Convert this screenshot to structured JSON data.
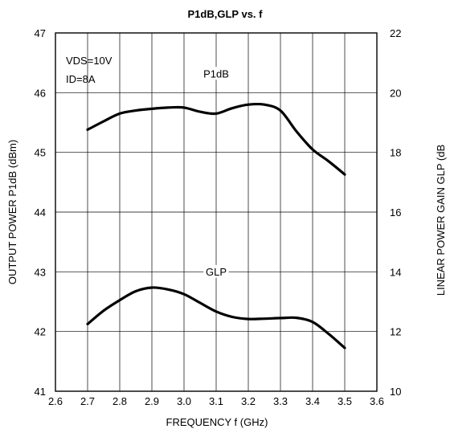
{
  "chart_data": {
    "type": "line",
    "title": "P1dB,GLP vs. f",
    "xlabel": "FREQUENCY f (GHz)",
    "ylabel": "OUTPUT POWER P1dB (dBm)",
    "y2label": "LINEAR POWER GAIN GLP (dB",
    "xlim": [
      2.6,
      3.6
    ],
    "ylim": [
      41,
      47
    ],
    "y2lim": [
      10,
      22
    ],
    "xticks": [
      "2.6",
      "2.7",
      "2.8",
      "2.9",
      "3.0",
      "3.1",
      "3.2",
      "3.3",
      "3.4",
      "3.5",
      "3.6"
    ],
    "yticks": [
      "41",
      "42",
      "43",
      "44",
      "45",
      "46",
      "47"
    ],
    "y2ticks": [
      "10",
      "12",
      "14",
      "16",
      "18",
      "20",
      "22"
    ],
    "grid": true,
    "annotations": [
      "VDS=10V",
      "ID=8A"
    ],
    "series": [
      {
        "name": "P1dB",
        "axis": "left",
        "x": [
          2.7,
          2.75,
          2.8,
          2.85,
          2.9,
          2.95,
          3.0,
          3.05,
          3.1,
          3.15,
          3.2,
          3.25,
          3.3,
          3.35,
          3.4,
          3.45,
          3.5
        ],
        "y": [
          45.38,
          45.52,
          45.65,
          45.7,
          45.73,
          45.75,
          45.75,
          45.68,
          45.65,
          45.74,
          45.8,
          45.8,
          45.7,
          45.35,
          45.05,
          44.85,
          44.63
        ]
      },
      {
        "name": "GLP",
        "axis": "right",
        "x": [
          2.7,
          2.75,
          2.8,
          2.85,
          2.9,
          2.95,
          3.0,
          3.05,
          3.1,
          3.15,
          3.2,
          3.25,
          3.3,
          3.35,
          3.4,
          3.45,
          3.5
        ],
        "y": [
          12.25,
          12.7,
          13.05,
          13.35,
          13.47,
          13.41,
          13.25,
          12.96,
          12.67,
          12.49,
          12.42,
          12.43,
          12.45,
          12.46,
          12.32,
          11.92,
          11.45
        ]
      }
    ]
  }
}
